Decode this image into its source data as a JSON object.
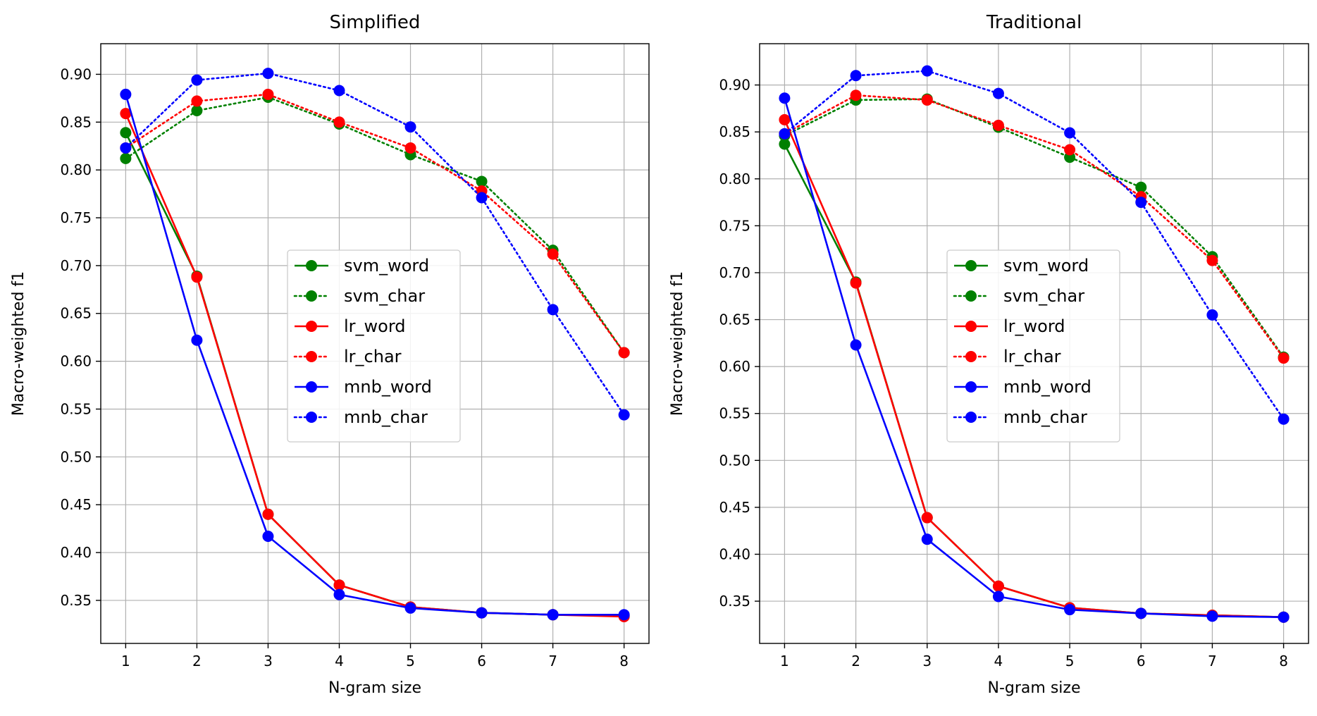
{
  "chart_data": [
    {
      "type": "line",
      "title": "Simplified",
      "xlabel": "N-gram size",
      "ylabel": "Macro-weighted f1",
      "x": [
        1,
        2,
        3,
        4,
        5,
        6,
        7,
        8
      ],
      "xticks": [
        "1",
        "2",
        "3",
        "4",
        "5",
        "6",
        "7",
        "8"
      ],
      "xlim": [
        0.65,
        8.35
      ],
      "ylim": [
        0.305,
        0.932
      ],
      "yticks": [
        "0.35",
        "0.40",
        "0.45",
        "0.50",
        "0.55",
        "0.60",
        "0.65",
        "0.70",
        "0.75",
        "0.80",
        "0.85",
        "0.90"
      ],
      "ytick_values": [
        0.35,
        0.4,
        0.45,
        0.5,
        0.55,
        0.6,
        0.65,
        0.7,
        0.75,
        0.8,
        0.85,
        0.9
      ],
      "grid": true,
      "legend_position": "center-right",
      "series": [
        {
          "name": "svm_word",
          "color": "#008000",
          "style": "solid",
          "values": [
            0.839,
            0.689,
            0.44,
            0.366,
            0.343,
            0.337,
            0.335,
            0.334
          ]
        },
        {
          "name": "svm_char",
          "color": "#008000",
          "style": "dotted",
          "values": [
            0.812,
            0.862,
            0.876,
            0.848,
            0.816,
            0.788,
            0.716,
            0.609
          ]
        },
        {
          "name": "lr_word",
          "color": "#ff0000",
          "style": "solid",
          "values": [
            0.859,
            0.688,
            0.44,
            0.366,
            0.343,
            0.337,
            0.335,
            0.333
          ]
        },
        {
          "name": "lr_char",
          "color": "#ff0000",
          "style": "dotted",
          "values": [
            0.823,
            0.872,
            0.879,
            0.85,
            0.823,
            0.778,
            0.712,
            0.609
          ]
        },
        {
          "name": "mnb_word",
          "color": "#0000ff",
          "style": "solid",
          "values": [
            0.879,
            0.622,
            0.417,
            0.356,
            0.342,
            0.337,
            0.335,
            0.335
          ]
        },
        {
          "name": "mnb_char",
          "color": "#0000ff",
          "style": "dotted",
          "values": [
            0.823,
            0.894,
            0.901,
            0.883,
            0.845,
            0.771,
            0.654,
            0.544
          ]
        }
      ]
    },
    {
      "type": "line",
      "title": "Traditional",
      "xlabel": "N-gram size",
      "ylabel": "Macro-weighted f1",
      "x": [
        1,
        2,
        3,
        4,
        5,
        6,
        7,
        8
      ],
      "xticks": [
        "1",
        "2",
        "3",
        "4",
        "5",
        "6",
        "7",
        "8"
      ],
      "xlim": [
        0.65,
        8.35
      ],
      "ylim": [
        0.305,
        0.944
      ],
      "yticks": [
        "0.35",
        "0.40",
        "0.45",
        "0.50",
        "0.55",
        "0.60",
        "0.65",
        "0.70",
        "0.75",
        "0.80",
        "0.85",
        "0.90"
      ],
      "ytick_values": [
        0.35,
        0.4,
        0.45,
        0.5,
        0.55,
        0.6,
        0.65,
        0.7,
        0.75,
        0.8,
        0.85,
        0.9
      ],
      "grid": true,
      "legend_position": "center-right",
      "series": [
        {
          "name": "svm_word",
          "color": "#008000",
          "style": "solid",
          "values": [
            0.837,
            0.69,
            0.439,
            0.366,
            0.343,
            0.337,
            0.335,
            0.333
          ]
        },
        {
          "name": "svm_char",
          "color": "#008000",
          "style": "dotted",
          "values": [
            0.846,
            0.884,
            0.885,
            0.855,
            0.823,
            0.791,
            0.717,
            0.61
          ]
        },
        {
          "name": "lr_word",
          "color": "#ff0000",
          "style": "solid",
          "values": [
            0.863,
            0.689,
            0.439,
            0.366,
            0.343,
            0.337,
            0.335,
            0.333
          ]
        },
        {
          "name": "lr_char",
          "color": "#ff0000",
          "style": "dotted",
          "values": [
            0.848,
            0.889,
            0.884,
            0.857,
            0.831,
            0.781,
            0.713,
            0.609
          ]
        },
        {
          "name": "mnb_word",
          "color": "#0000ff",
          "style": "solid",
          "values": [
            0.886,
            0.623,
            0.416,
            0.355,
            0.341,
            0.337,
            0.334,
            0.333
          ]
        },
        {
          "name": "mnb_char",
          "color": "#0000ff",
          "style": "dotted",
          "values": [
            0.848,
            0.91,
            0.915,
            0.891,
            0.849,
            0.775,
            0.655,
            0.544
          ]
        }
      ]
    }
  ]
}
